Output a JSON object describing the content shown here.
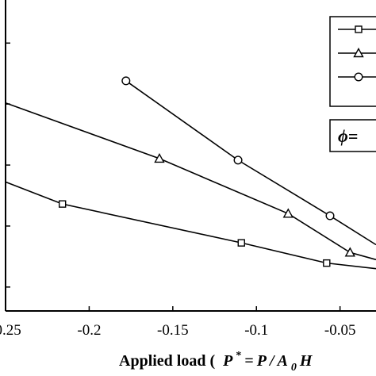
{
  "chart_data": {
    "type": "line",
    "x": [
      -0.25,
      -0.2,
      -0.15,
      -0.1,
      -0.05
    ],
    "xlim": [
      -0.25,
      -0.0285
    ],
    "ylim": [
      0,
      1
    ],
    "xticks": [
      -0.25,
      -0.2,
      -0.15,
      -0.1,
      -0.05
    ],
    "x_tick_labels": [
      "-0.25",
      "-0.2",
      "-0.15",
      "-0.1",
      "-0.05"
    ],
    "ytick_positions": [
      0.0769,
      0.2731,
      0.4692,
      0.6654,
      0.8615
    ],
    "xlabel": {
      "prefix": "Applied load (",
      "formula": [
        "P",
        "*",
        "=",
        "P",
        "/",
        "A",
        "0",
        "H"
      ]
    },
    "legend_text_fragment": "ϕ=",
    "grid": false,
    "series": [
      {
        "marker": "square",
        "points": [
          [
            -0.25,
            0.415
          ],
          [
            -0.216,
            0.344
          ],
          [
            -0.109,
            0.219
          ],
          [
            -0.058,
            0.154
          ],
          [
            -0.0285,
            0.136
          ]
        ]
      },
      {
        "marker": "triangle",
        "points": [
          [
            -0.25,
            0.669
          ],
          [
            -0.158,
            0.49
          ],
          [
            -0.081,
            0.313
          ],
          [
            -0.044,
            0.188
          ],
          [
            -0.0285,
            0.165
          ]
        ]
      },
      {
        "marker": "circle",
        "points": [
          [
            -0.178,
            0.74
          ],
          [
            -0.111,
            0.485
          ],
          [
            -0.056,
            0.306
          ],
          [
            -0.0285,
            0.213
          ]
        ]
      }
    ]
  }
}
